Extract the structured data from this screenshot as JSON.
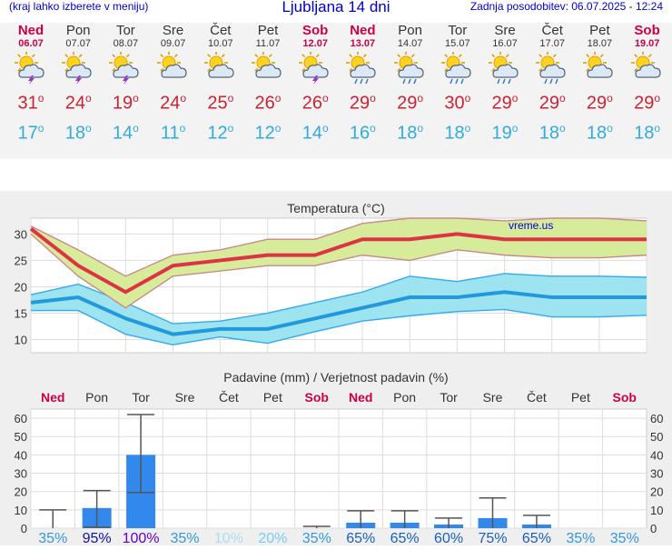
{
  "header": {
    "menu_hint": "(kraj lahko izberete v meniju)",
    "title": "Ljubljana 14 dni",
    "updated": "Zadnja posodobitev: 06.07.2025 - 12:24"
  },
  "colors": {
    "weekend": "#cc0044",
    "weekday": "#333333",
    "max_temp": "#cc2233",
    "min_temp": "#33aadd",
    "bar": "#3388ee"
  },
  "forecast": [
    {
      "name": "Ned",
      "date": "06.07",
      "icon": "sun-cloud-thunder-icon",
      "tmax": "31",
      "tmin": "17",
      "weekend": true
    },
    {
      "name": "Pon",
      "date": "07.07",
      "icon": "sun-cloud-thunder-icon",
      "tmax": "24",
      "tmin": "18",
      "weekend": false
    },
    {
      "name": "Tor",
      "date": "08.07",
      "icon": "sun-cloud-thunder-icon",
      "tmax": "19",
      "tmin": "14",
      "weekend": false
    },
    {
      "name": "Sre",
      "date": "09.07",
      "icon": "sun-cloud-icon",
      "tmax": "24",
      "tmin": "11",
      "weekend": false
    },
    {
      "name": "Čet",
      "date": "10.07",
      "icon": "sun-cloud-icon",
      "tmax": "25",
      "tmin": "12",
      "weekend": false
    },
    {
      "name": "Pet",
      "date": "11.07",
      "icon": "sun-cloud-icon",
      "tmax": "26",
      "tmin": "12",
      "weekend": false
    },
    {
      "name": "Sob",
      "date": "12.07",
      "icon": "sun-cloud-thunder-icon",
      "tmax": "26",
      "tmin": "14",
      "weekend": true
    },
    {
      "name": "Ned",
      "date": "13.07",
      "icon": "sun-cloud-rain-icon",
      "tmax": "29",
      "tmin": "16",
      "weekend": true
    },
    {
      "name": "Pon",
      "date": "14.07",
      "icon": "sun-cloud-rain-icon",
      "tmax": "29",
      "tmin": "18",
      "weekend": false
    },
    {
      "name": "Tor",
      "date": "15.07",
      "icon": "sun-cloud-rain-icon",
      "tmax": "30",
      "tmin": "18",
      "weekend": false
    },
    {
      "name": "Sre",
      "date": "16.07",
      "icon": "sun-cloud-rain-icon",
      "tmax": "29",
      "tmin": "19",
      "weekend": false
    },
    {
      "name": "Čet",
      "date": "17.07",
      "icon": "sun-cloud-rain-icon",
      "tmax": "29",
      "tmin": "18",
      "weekend": false
    },
    {
      "name": "Pet",
      "date": "18.07",
      "icon": "sun-cloud-icon",
      "tmax": "29",
      "tmin": "18",
      "weekend": false
    },
    {
      "name": "Sob",
      "date": "19.07",
      "icon": "sun-cloud-icon",
      "tmax": "29",
      "tmin": "18",
      "weekend": true
    }
  ],
  "chart_data": [
    {
      "type": "line",
      "title": "Temperatura (°C)",
      "watermark": "vreme.us",
      "x": [
        1,
        2,
        3,
        4,
        5,
        6,
        7,
        8,
        9,
        10,
        11,
        12,
        13,
        14
      ],
      "yticks": [
        10,
        15,
        20,
        25,
        30
      ],
      "ylim": [
        7.5,
        33
      ],
      "grid": true,
      "series": [
        {
          "values": [
            31,
            24,
            19,
            24,
            25,
            26,
            26,
            29,
            29,
            30,
            29,
            29,
            29,
            29
          ],
          "band_low": [
            30,
            22,
            16,
            22,
            23,
            24,
            24,
            26,
            25,
            27,
            26,
            25.5,
            25.5,
            26
          ],
          "band_high": [
            31.5,
            27,
            22,
            26,
            27,
            29,
            29,
            32,
            33,
            33,
            32.5,
            33,
            33,
            32.5
          ]
        },
        {
          "values": [
            17,
            18,
            14,
            11,
            12,
            12,
            14,
            16,
            18,
            18,
            19,
            18,
            18,
            18
          ],
          "band_low": [
            15.5,
            15.5,
            11,
            9,
            10.5,
            9.3,
            11.5,
            13.5,
            14.5,
            15.3,
            15.7,
            14.3,
            14.3,
            14.6
          ],
          "band_high": [
            18.5,
            20.5,
            17,
            13,
            13.5,
            15,
            17,
            19,
            22,
            21,
            22.5,
            22,
            22,
            21.8
          ]
        }
      ]
    },
    {
      "type": "bar",
      "title": "Padavine (mm) / Verjetnost padavin (%)",
      "categories": [
        "Ned",
        "Pon",
        "Tor",
        "Sre",
        "Čet",
        "Pet",
        "Sob",
        "Ned",
        "Pon",
        "Tor",
        "Sre",
        "Čet",
        "Pet",
        "Sob"
      ],
      "values": [
        0,
        11,
        40,
        0,
        0,
        0,
        0,
        3,
        3,
        2,
        5.5,
        2,
        0,
        0
      ],
      "range_low": [
        0,
        0.5,
        19.5,
        0,
        0,
        0,
        0,
        0,
        0,
        0,
        0,
        0,
        0,
        0
      ],
      "range_high": [
        10,
        20.5,
        62,
        0,
        0,
        0,
        1,
        9.5,
        9.5,
        5.5,
        16.5,
        7,
        0,
        0
      ],
      "probabilities": [
        "35%",
        "95%",
        "100%",
        "35%",
        "10%",
        "20%",
        "35%",
        "65%",
        "65%",
        "60%",
        "75%",
        "65%",
        "35%",
        "35%"
      ],
      "yticks": [
        0,
        10,
        20,
        30,
        40,
        50,
        60
      ],
      "ylim": [
        0,
        65
      ]
    }
  ]
}
